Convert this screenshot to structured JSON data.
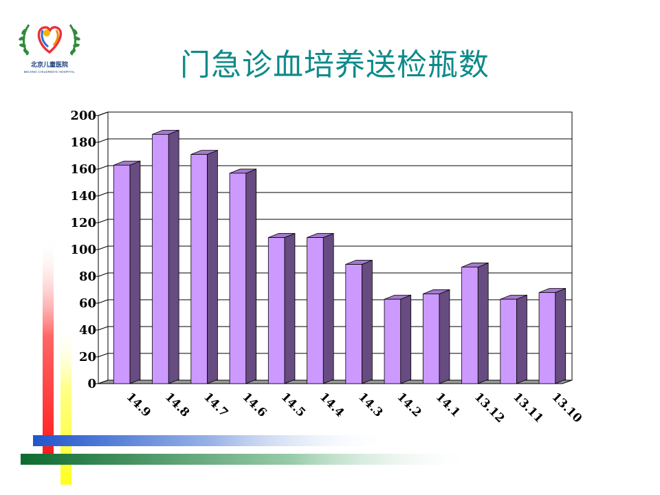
{
  "slide": {
    "title": "门急诊血培养送检瓶数",
    "logo": {
      "name_cn": "北京儿童医院",
      "name_en": "BEIJING CHILDREN'S HOSPITAL"
    }
  },
  "colors": {
    "title": "#0e8a8a",
    "bar_front": "#cc99ff",
    "bar_side": "#664c80",
    "bar_top": "#a37acc",
    "deco_red": "#ff2222",
    "deco_yellow": "#ffff33",
    "deco_blue": "#3366cc",
    "deco_green": "#117733"
  },
  "chart_data": {
    "type": "bar",
    "title": "",
    "xlabel": "",
    "ylabel": "",
    "categories": [
      "14.9",
      "14.8",
      "14.7",
      "14.6",
      "14.5",
      "14.4",
      "14.3",
      "14.2",
      "14.1",
      "13.12",
      "13.11",
      "13.10"
    ],
    "values": [
      165,
      188,
      173,
      159,
      111,
      111,
      91,
      65,
      69,
      89,
      65,
      70
    ],
    "ylim": [
      0,
      200
    ],
    "yticks": [
      0,
      20,
      40,
      60,
      80,
      100,
      120,
      140,
      160,
      180,
      200
    ],
    "grid": true,
    "legend": "none",
    "style": "3d-column"
  }
}
